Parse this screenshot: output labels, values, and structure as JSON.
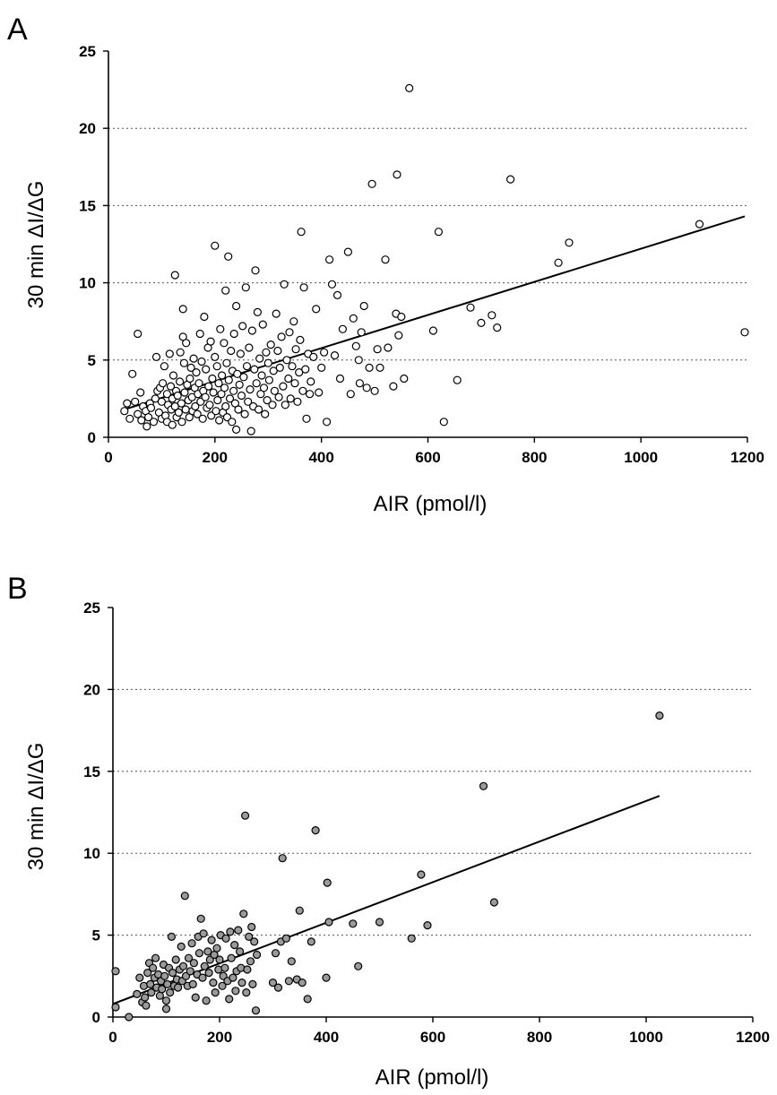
{
  "chart_data": [
    {
      "type": "scatter",
      "panel_label": "A",
      "xlabel": "AIR (pmol/l)",
      "ylabel": "30 min ΔI/ΔG",
      "xlim": [
        0,
        1200
      ],
      "ylim": [
        0,
        25
      ],
      "xticks": [
        "0",
        "200",
        "400",
        "600",
        "800",
        "1000",
        "1200"
      ],
      "yticks": [
        "0",
        "5",
        "10",
        "15",
        "20",
        "25"
      ],
      "y_gridlines": [
        5,
        10,
        15,
        20
      ],
      "marker": {
        "fill": "#ffffff",
        "stroke": "#000000"
      },
      "trendline": {
        "x": [
          30,
          1195
        ],
        "y": [
          1.8,
          14.3
        ]
      },
      "points": [
        [
          30,
          1.7
        ],
        [
          35,
          2.2
        ],
        [
          40,
          1.2
        ],
        [
          45,
          4.1
        ],
        [
          50,
          2.3
        ],
        [
          55,
          1.5
        ],
        [
          55,
          6.7
        ],
        [
          60,
          2.9
        ],
        [
          62,
          1.1
        ],
        [
          65,
          2.0
        ],
        [
          70,
          1.7
        ],
        [
          72,
          0.7
        ],
        [
          75,
          1.3
        ],
        [
          78,
          2.2
        ],
        [
          80,
          1.9
        ],
        [
          85,
          1.0
        ],
        [
          88,
          2.5
        ],
        [
          90,
          5.2
        ],
        [
          92,
          3.0
        ],
        [
          95,
          1.6
        ],
        [
          97,
          3.2
        ],
        [
          100,
          2.3
        ],
        [
          100,
          1.2
        ],
        [
          102,
          3.5
        ],
        [
          105,
          4.6
        ],
        [
          107,
          1.4
        ],
        [
          110,
          2.8
        ],
        [
          110,
          1.0
        ],
        [
          112,
          2.1
        ],
        [
          115,
          5.4
        ],
        [
          117,
          3.3
        ],
        [
          118,
          1.8
        ],
        [
          120,
          2.5
        ],
        [
          120,
          0.8
        ],
        [
          122,
          4.0
        ],
        [
          125,
          10.5
        ],
        [
          125,
          2.0
        ],
        [
          127,
          3.0
        ],
        [
          128,
          1.3
        ],
        [
          130,
          2.7
        ],
        [
          132,
          1.6
        ],
        [
          134,
          3.6
        ],
        [
          135,
          5.5
        ],
        [
          137,
          2.2
        ],
        [
          138,
          1.0
        ],
        [
          140,
          8.3
        ],
        [
          140,
          6.5
        ],
        [
          142,
          4.8
        ],
        [
          143,
          2.9
        ],
        [
          145,
          1.8
        ],
        [
          146,
          6.1
        ],
        [
          148,
          3.4
        ],
        [
          150,
          2.4
        ],
        [
          152,
          1.3
        ],
        [
          153,
          3.8
        ],
        [
          155,
          4.5
        ],
        [
          157,
          2.6
        ],
        [
          158,
          1.7
        ],
        [
          160,
          5.1
        ],
        [
          162,
          3.2
        ],
        [
          163,
          2.0
        ],
        [
          165,
          4.2
        ],
        [
          167,
          1.5
        ],
        [
          168,
          2.8
        ],
        [
          170,
          3.5
        ],
        [
          172,
          6.7
        ],
        [
          173,
          2.3
        ],
        [
          175,
          4.9
        ],
        [
          177,
          1.2
        ],
        [
          178,
          3.0
        ],
        [
          180,
          7.8
        ],
        [
          182,
          2.6
        ],
        [
          183,
          4.4
        ],
        [
          185,
          1.9
        ],
        [
          187,
          5.8
        ],
        [
          188,
          3.3
        ],
        [
          190,
          2.1
        ],
        [
          192,
          6.2
        ],
        [
          193,
          1.4
        ],
        [
          195,
          3.8
        ],
        [
          197,
          2.9
        ],
        [
          200,
          5.2
        ],
        [
          200,
          12.4
        ],
        [
          202,
          1.7
        ],
        [
          204,
          4.6
        ],
        [
          205,
          2.4
        ],
        [
          207,
          3.5
        ],
        [
          208,
          1.1
        ],
        [
          210,
          7.0
        ],
        [
          212,
          2.8
        ],
        [
          213,
          4.0
        ],
        [
          215,
          1.6
        ],
        [
          217,
          6.1
        ],
        [
          218,
          3.2
        ],
        [
          220,
          9.5
        ],
        [
          220,
          2.0
        ],
        [
          222,
          4.8
        ],
        [
          223,
          1.3
        ],
        [
          225,
          11.7
        ],
        [
          226,
          3.7
        ],
        [
          228,
          2.5
        ],
        [
          230,
          5.6
        ],
        [
          232,
          1.0
        ],
        [
          233,
          4.3
        ],
        [
          235,
          3.0
        ],
        [
          236,
          6.7
        ],
        [
          238,
          2.2
        ],
        [
          240,
          8.5
        ],
        [
          240,
          0.5
        ],
        [
          242,
          4.1
        ],
        [
          244,
          1.8
        ],
        [
          246,
          3.4
        ],
        [
          248,
          5.4
        ],
        [
          250,
          2.7
        ],
        [
          252,
          7.2
        ],
        [
          254,
          3.9
        ],
        [
          256,
          1.5
        ],
        [
          258,
          9.7
        ],
        [
          260,
          4.6
        ],
        [
          262,
          2.3
        ],
        [
          264,
          5.8
        ],
        [
          266,
          3.1
        ],
        [
          268,
          0.4
        ],
        [
          270,
          6.9
        ],
        [
          272,
          2.0
        ],
        [
          274,
          4.4
        ],
        [
          276,
          10.8
        ],
        [
          278,
          3.5
        ],
        [
          280,
          8.1
        ],
        [
          282,
          1.8
        ],
        [
          284,
          5.1
        ],
        [
          286,
          2.8
        ],
        [
          288,
          4.0
        ],
        [
          290,
          7.3
        ],
        [
          292,
          3.2
        ],
        [
          294,
          1.5
        ],
        [
          296,
          5.5
        ],
        [
          298,
          2.4
        ],
        [
          300,
          4.8
        ],
        [
          302,
          3.7
        ],
        [
          305,
          6.0
        ],
        [
          308,
          2.1
        ],
        [
          310,
          4.3
        ],
        [
          312,
          3.0
        ],
        [
          315,
          8.0
        ],
        [
          318,
          5.6
        ],
        [
          320,
          2.6
        ],
        [
          322,
          4.5
        ],
        [
          325,
          6.5
        ],
        [
          328,
          3.3
        ],
        [
          330,
          9.9
        ],
        [
          332,
          2.1
        ],
        [
          335,
          5.0
        ],
        [
          338,
          3.8
        ],
        [
          340,
          6.8
        ],
        [
          342,
          2.5
        ],
        [
          345,
          4.6
        ],
        [
          348,
          7.5
        ],
        [
          350,
          3.5
        ],
        [
          352,
          5.7
        ],
        [
          355,
          2.3
        ],
        [
          358,
          4.2
        ],
        [
          360,
          6.3
        ],
        [
          362,
          13.3
        ],
        [
          365,
          3.0
        ],
        [
          367,
          9.7
        ],
        [
          370,
          4.4
        ],
        [
          372,
          1.2
        ],
        [
          375,
          5.4
        ],
        [
          378,
          2.8
        ],
        [
          380,
          3.6
        ],
        [
          385,
          5.2
        ],
        [
          390,
          8.3
        ],
        [
          395,
          2.9
        ],
        [
          400,
          4.5
        ],
        [
          405,
          5.5
        ],
        [
          410,
          1.0
        ],
        [
          415,
          11.5
        ],
        [
          420,
          9.9
        ],
        [
          425,
          5.3
        ],
        [
          430,
          9.2
        ],
        [
          435,
          3.8
        ],
        [
          440,
          7.0
        ],
        [
          450,
          12.0
        ],
        [
          455,
          2.8
        ],
        [
          460,
          7.7
        ],
        [
          465,
          5.9
        ],
        [
          470,
          5.0
        ],
        [
          472,
          3.5
        ],
        [
          475,
          6.8
        ],
        [
          480,
          8.5
        ],
        [
          485,
          3.2
        ],
        [
          490,
          4.5
        ],
        [
          495,
          16.4
        ],
        [
          500,
          3.0
        ],
        [
          505,
          5.7
        ],
        [
          510,
          4.5
        ],
        [
          520,
          11.5
        ],
        [
          525,
          5.8
        ],
        [
          535,
          3.3
        ],
        [
          540,
          8.0
        ],
        [
          542,
          17.0
        ],
        [
          545,
          6.6
        ],
        [
          550,
          7.8
        ],
        [
          555,
          3.8
        ],
        [
          565,
          22.6
        ],
        [
          610,
          6.9
        ],
        [
          620,
          13.3
        ],
        [
          630,
          1.0
        ],
        [
          655,
          3.7
        ],
        [
          680,
          8.4
        ],
        [
          700,
          7.4
        ],
        [
          720,
          7.9
        ],
        [
          730,
          7.1
        ],
        [
          755,
          16.7
        ],
        [
          845,
          11.3
        ],
        [
          865,
          12.6
        ],
        [
          1110,
          13.8
        ],
        [
          1195,
          6.8
        ]
      ]
    },
    {
      "type": "scatter",
      "panel_label": "B",
      "xlabel": "AIR (pmol/l)",
      "ylabel": "30 min ΔI/ΔG",
      "xlim": [
        0,
        1200
      ],
      "ylim": [
        0,
        25
      ],
      "xticks": [
        "0",
        "200",
        "400",
        "600",
        "800",
        "1000",
        "1200"
      ],
      "yticks": [
        "0",
        "5",
        "10",
        "15",
        "20",
        "25"
      ],
      "y_gridlines": [
        5,
        10,
        15,
        20
      ],
      "marker": {
        "fill": "#9a9a9a",
        "stroke": "#000000"
      },
      "trendline": {
        "x": [
          0,
          1025
        ],
        "y": [
          0.8,
          13.5
        ]
      },
      "points": [
        [
          5,
          0.6
        ],
        [
          5,
          2.8
        ],
        [
          30,
          0.0
        ],
        [
          45,
          1.4
        ],
        [
          50,
          2.4
        ],
        [
          55,
          0.9
        ],
        [
          58,
          1.9
        ],
        [
          60,
          1.2
        ],
        [
          62,
          0.7
        ],
        [
          65,
          2.7
        ],
        [
          68,
          3.3
        ],
        [
          70,
          2.0
        ],
        [
          72,
          1.5
        ],
        [
          75,
          3.0
        ],
        [
          78,
          2.4
        ],
        [
          80,
          3.6
        ],
        [
          82,
          1.8
        ],
        [
          85,
          2.6
        ],
        [
          88,
          1.3
        ],
        [
          90,
          2.2
        ],
        [
          92,
          1.7
        ],
        [
          95,
          3.2
        ],
        [
          97,
          2.5
        ],
        [
          100,
          1.0
        ],
        [
          100,
          0.5
        ],
        [
          102,
          2.0
        ],
        [
          105,
          3.0
        ],
        [
          107,
          1.5
        ],
        [
          110,
          4.9
        ],
        [
          112,
          2.7
        ],
        [
          115,
          1.9
        ],
        [
          118,
          3.5
        ],
        [
          120,
          2.3
        ],
        [
          122,
          1.8
        ],
        [
          125,
          2.9
        ],
        [
          128,
          4.3
        ],
        [
          130,
          2.2
        ],
        [
          132,
          3.1
        ],
        [
          135,
          7.4
        ],
        [
          137,
          2.5
        ],
        [
          140,
          1.9
        ],
        [
          142,
          3.6
        ],
        [
          145,
          2.8
        ],
        [
          148,
          4.5
        ],
        [
          150,
          2.0
        ],
        [
          152,
          3.3
        ],
        [
          155,
          1.2
        ],
        [
          158,
          2.6
        ],
        [
          160,
          4.9
        ],
        [
          162,
          3.9
        ],
        [
          165,
          6.0
        ],
        [
          168,
          2.4
        ],
        [
          170,
          5.1
        ],
        [
          172,
          3.1
        ],
        [
          175,
          1.0
        ],
        [
          178,
          4.0
        ],
        [
          180,
          2.7
        ],
        [
          182,
          3.5
        ],
        [
          185,
          4.7
        ],
        [
          188,
          2.1
        ],
        [
          190,
          3.8
        ],
        [
          192,
          1.5
        ],
        [
          195,
          4.2
        ],
        [
          198,
          2.9
        ],
        [
          200,
          3.5
        ],
        [
          202,
          5.0
        ],
        [
          205,
          1.9
        ],
        [
          207,
          2.5
        ],
        [
          210,
          3.0
        ],
        [
          212,
          4.8
        ],
        [
          215,
          2.2
        ],
        [
          218,
          1.1
        ],
        [
          220,
          5.2
        ],
        [
          222,
          3.6
        ],
        [
          225,
          2.4
        ],
        [
          228,
          4.4
        ],
        [
          230,
          1.6
        ],
        [
          232,
          2.8
        ],
        [
          235,
          5.3
        ],
        [
          238,
          4.0
        ],
        [
          240,
          3.0
        ],
        [
          242,
          2.1
        ],
        [
          245,
          6.3
        ],
        [
          248,
          12.3
        ],
        [
          250,
          1.5
        ],
        [
          252,
          2.9
        ],
        [
          255,
          4.9
        ],
        [
          258,
          3.4
        ],
        [
          260,
          5.5
        ],
        [
          262,
          2.0
        ],
        [
          265,
          4.6
        ],
        [
          268,
          0.4
        ],
        [
          270,
          3.8
        ],
        [
          300,
          2.1
        ],
        [
          305,
          3.9
        ],
        [
          310,
          1.8
        ],
        [
          315,
          4.6
        ],
        [
          318,
          9.7
        ],
        [
          325,
          4.8
        ],
        [
          330,
          2.2
        ],
        [
          335,
          3.4
        ],
        [
          345,
          2.3
        ],
        [
          350,
          6.5
        ],
        [
          355,
          2.1
        ],
        [
          365,
          1.1
        ],
        [
          372,
          4.6
        ],
        [
          380,
          11.4
        ],
        [
          400,
          2.4
        ],
        [
          402,
          8.2
        ],
        [
          405,
          5.8
        ],
        [
          450,
          5.7
        ],
        [
          460,
          3.1
        ],
        [
          500,
          5.8
        ],
        [
          560,
          4.8
        ],
        [
          578,
          8.7
        ],
        [
          590,
          5.6
        ],
        [
          695,
          14.1
        ],
        [
          715,
          7.0
        ],
        [
          1025,
          18.4
        ]
      ]
    }
  ]
}
